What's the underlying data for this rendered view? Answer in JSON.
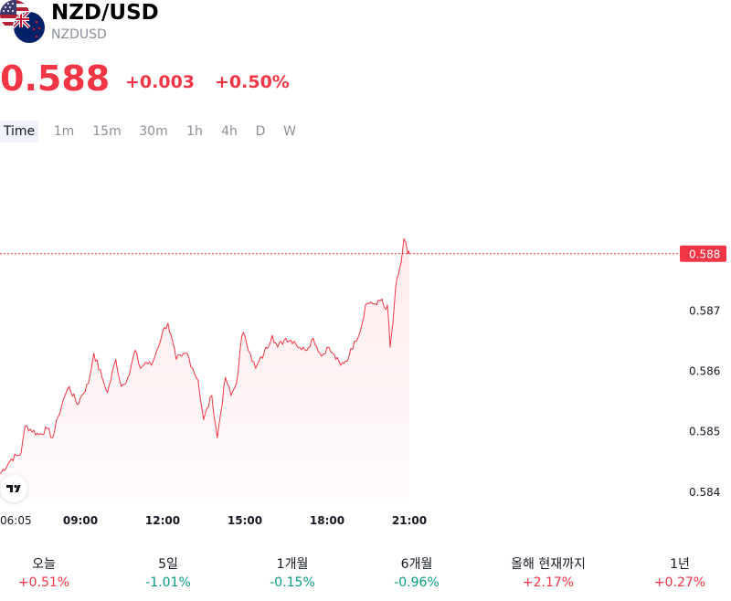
{
  "header": {
    "title": "NZD/USD",
    "symbol": "NZDUSD",
    "price": "0.588",
    "change": "+0.003",
    "change_pct": "+0.50%"
  },
  "tabs": [
    "Time",
    "1m",
    "15m",
    "30m",
    "1h",
    "4h",
    "D",
    "W"
  ],
  "active_tab": "Time",
  "colors": {
    "up": "#f23645",
    "down": "#089981",
    "line": "#f23645",
    "price_label_bg": "#f23645"
  },
  "chart_data": {
    "type": "area",
    "x_ticks": [
      "06:05",
      "09:00",
      "12:00",
      "15:00",
      "18:00",
      "21:00"
    ],
    "y_ticks": [
      0.584,
      0.585,
      0.586,
      0.587
    ],
    "y_tick_labels": [
      "0.584",
      "0.585",
      "0.586",
      "0.587"
    ],
    "ylim": [
      0.5838,
      0.5889
    ],
    "xlim_hours": [
      6.08,
      21.0
    ],
    "last_price_label": "0.588",
    "last_price": 0.58795,
    "series": [
      {
        "x": [
          6.08,
          6.5,
          6.85,
          7.0,
          7.5,
          7.8,
          8.0,
          8.2,
          8.4,
          8.6,
          8.9,
          9.0,
          9.3,
          9.5,
          9.8,
          10.0,
          10.3,
          10.5,
          10.8,
          11.0,
          11.2,
          11.4,
          11.6,
          11.8,
          12.0,
          12.2,
          12.5,
          12.7,
          12.9,
          13.1,
          13.3,
          13.5,
          13.8,
          14.0,
          14.3,
          14.5,
          14.7,
          14.9,
          15.0,
          15.2,
          15.4,
          15.7,
          16.0,
          16.2,
          16.5,
          16.8,
          17.0,
          17.2,
          17.5,
          17.8,
          18.0,
          18.2,
          18.5,
          18.8,
          19.0,
          19.2,
          19.4,
          19.6,
          19.8,
          20.0,
          20.1,
          20.2,
          20.3,
          20.4,
          20.5,
          20.6,
          20.7,
          20.8,
          20.95,
          21.0
        ],
        "values": [
          0.5843,
          0.58455,
          0.58465,
          0.5851,
          0.58495,
          0.58505,
          0.5849,
          0.58525,
          0.58555,
          0.58575,
          0.58545,
          0.58555,
          0.5858,
          0.5863,
          0.5859,
          0.58565,
          0.5862,
          0.58575,
          0.58595,
          0.58635,
          0.58605,
          0.58615,
          0.5861,
          0.58635,
          0.58665,
          0.5868,
          0.5862,
          0.58625,
          0.5863,
          0.58605,
          0.58585,
          0.5852,
          0.5856,
          0.5849,
          0.5859,
          0.5856,
          0.5858,
          0.5866,
          0.5866,
          0.5863,
          0.58605,
          0.5863,
          0.5866,
          0.5864,
          0.58655,
          0.5865,
          0.5864,
          0.58635,
          0.58655,
          0.58625,
          0.5864,
          0.5863,
          0.5861,
          0.58625,
          0.5865,
          0.58665,
          0.5871,
          0.58715,
          0.5871,
          0.5872,
          0.58705,
          0.5871,
          0.5864,
          0.5868,
          0.5874,
          0.5876,
          0.5878,
          0.5882,
          0.58795,
          0.58795
        ]
      }
    ]
  },
  "performance": [
    {
      "label": "오늘",
      "value": "+0.51%",
      "dir": "up"
    },
    {
      "label": "5일",
      "value": "-1.01%",
      "dir": "down"
    },
    {
      "label": "1개월",
      "value": "-0.15%",
      "dir": "down"
    },
    {
      "label": "6개월",
      "value": "-0.96%",
      "dir": "down"
    },
    {
      "label": "올해 현재까지",
      "value": "+2.17%",
      "dir": "up"
    },
    {
      "label": "1년",
      "value": "+0.27%",
      "dir": "up"
    }
  ]
}
